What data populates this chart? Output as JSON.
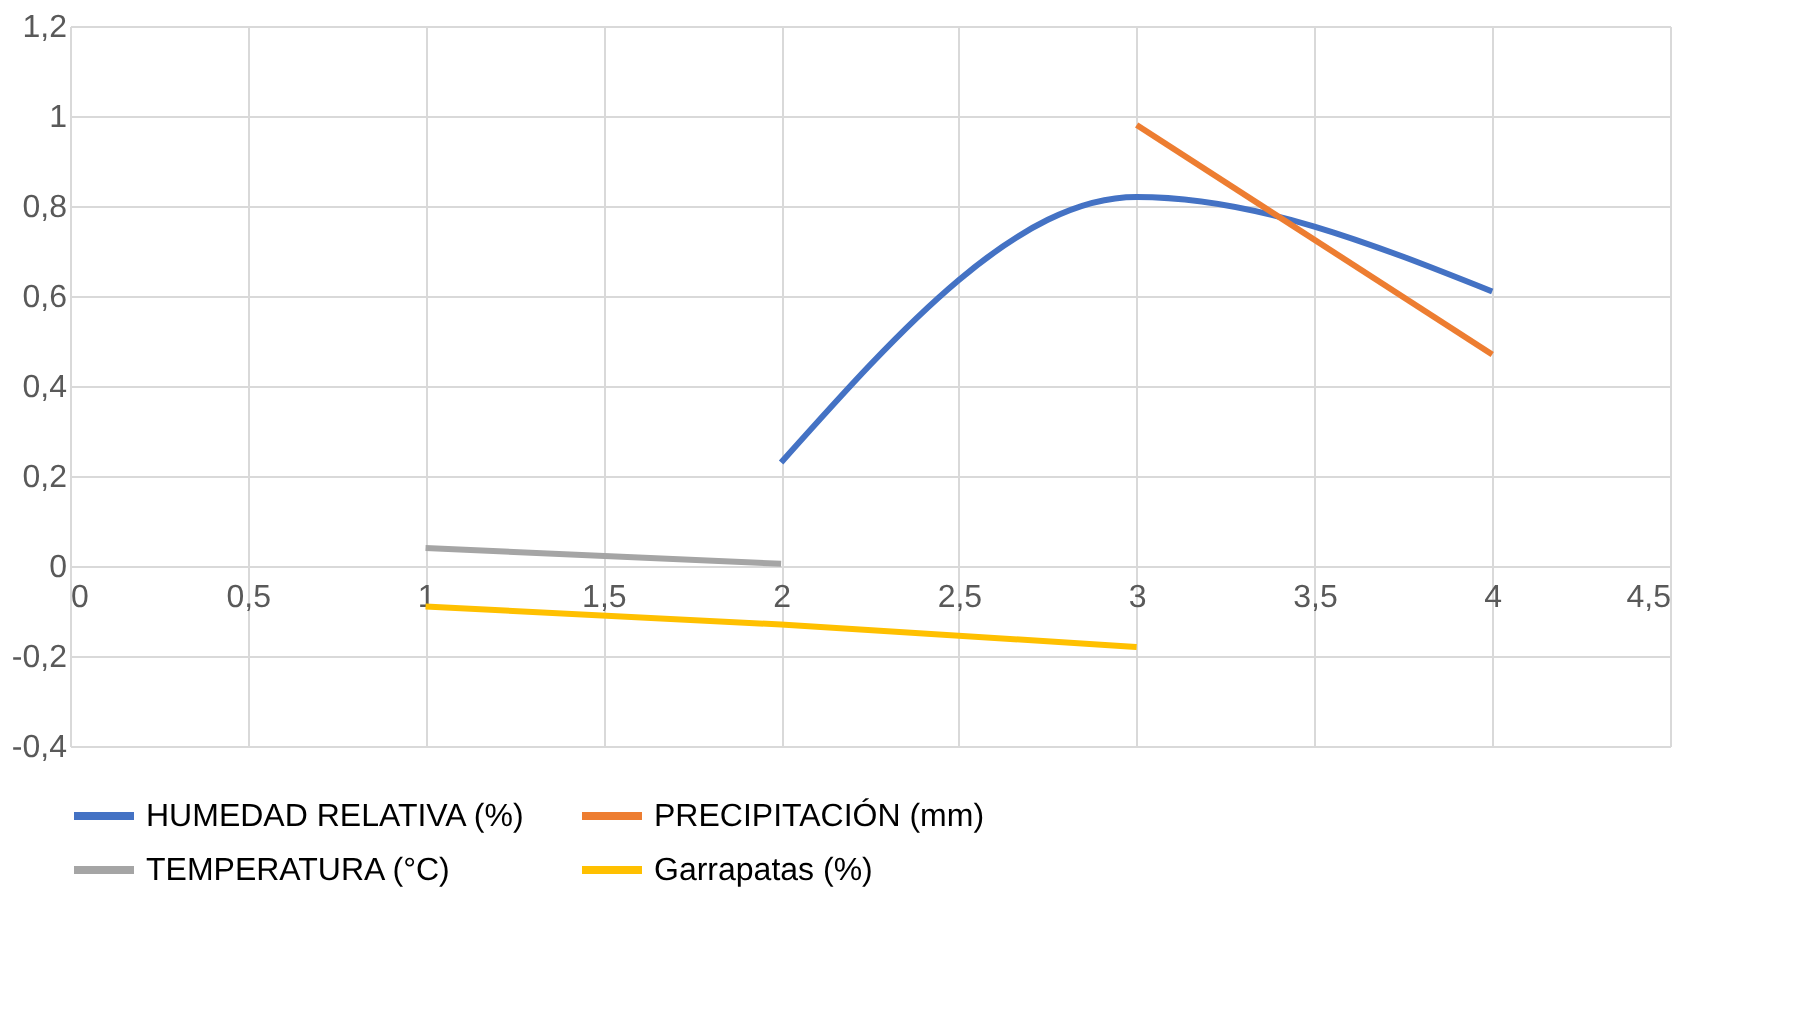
{
  "chart_data": {
    "type": "line",
    "series": [
      {
        "name": "HUMEDAD RELATIVA (%)",
        "color": "#4472c4",
        "x": [
          2,
          3,
          4
        ],
        "values": [
          0.23,
          0.82,
          0.61
        ]
      },
      {
        "name": "PRECIPITACIÓN (mm)",
        "color": "#ed7d31",
        "x": [
          3,
          4
        ],
        "values": [
          0.98,
          0.47
        ]
      },
      {
        "name": "TEMPERATURA (°C)",
        "color": "#a5a5a5",
        "x": [
          1,
          2
        ],
        "values": [
          0.04,
          0.005
        ]
      },
      {
        "name": "Garrapatas (%)",
        "color": "#ffc000",
        "x": [
          1,
          2,
          3
        ],
        "values": [
          -0.09,
          -0.13,
          -0.18
        ]
      }
    ],
    "xlim": [
      0,
      4.5
    ],
    "xticks": [
      0,
      {
        "value": 0.5,
        "label": "0,5"
      },
      1,
      {
        "value": 1.5,
        "label": "1,5"
      },
      2,
      {
        "value": 2.5,
        "label": "2,5"
      },
      3,
      {
        "value": 3.5,
        "label": "3,5"
      },
      4,
      {
        "value": 4.5,
        "label": "4,5"
      }
    ],
    "ylim": [
      -0.4,
      1.2
    ],
    "yticks": [
      {
        "value": -0.4,
        "label": "-0,4"
      },
      {
        "value": -0.2,
        "label": "-0,2"
      },
      0,
      {
        "value": 0.2,
        "label": "0,2"
      },
      {
        "value": 0.4,
        "label": "0,4"
      },
      {
        "value": 0.6,
        "label": "0,6"
      },
      {
        "value": 0.8,
        "label": "0,8"
      },
      1,
      {
        "value": 1.2,
        "label": "1,2"
      }
    ],
    "grid": true,
    "legend": "bottom",
    "marker": "none",
    "line_style": "solid"
  }
}
